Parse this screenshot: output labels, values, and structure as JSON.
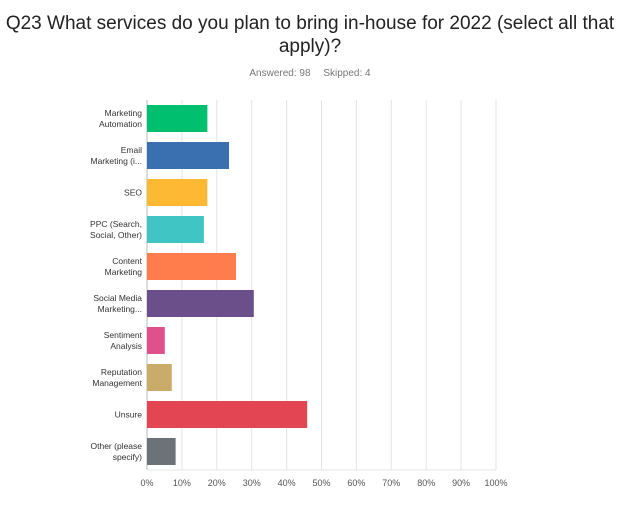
{
  "page": {
    "title_line1": "Q23 What services do you plan to bring in-house for 2022 (select all that",
    "title_line2": "apply)?",
    "answered": "Answered: 98",
    "skipped": "Skipped: 4"
  },
  "chart_data": {
    "type": "bar",
    "orientation": "horizontal",
    "categories": [
      [
        "Marketing",
        "Automation"
      ],
      [
        "Email",
        "Marketing (i..."
      ],
      [
        "SEO"
      ],
      [
        "PPC (Search,",
        "Social, Other)"
      ],
      [
        "Content",
        "Marketing"
      ],
      [
        "Social Media",
        "Marketing..."
      ],
      [
        "Sentiment",
        "Analysis"
      ],
      [
        "Reputation",
        "Management"
      ],
      [
        "Unsure"
      ],
      [
        "Other (please",
        "specify)"
      ]
    ],
    "values": [
      17.3,
      23.5,
      17.3,
      16.3,
      25.5,
      30.6,
      5.1,
      7.1,
      45.9,
      8.2
    ],
    "colors": [
      "#00bf6f",
      "#3a6fb0",
      "#fdb933",
      "#40c4c4",
      "#ff7d4c",
      "#6b4f8a",
      "#e0508a",
      "#c9ac6a",
      "#e44553",
      "#6b7278"
    ],
    "xlim": [
      0,
      100
    ],
    "xticks": [
      "0%",
      "10%",
      "20%",
      "30%",
      "40%",
      "50%",
      "60%",
      "70%",
      "80%",
      "90%",
      "100%"
    ],
    "grid": true,
    "title": "",
    "xlabel": "",
    "ylabel": ""
  }
}
